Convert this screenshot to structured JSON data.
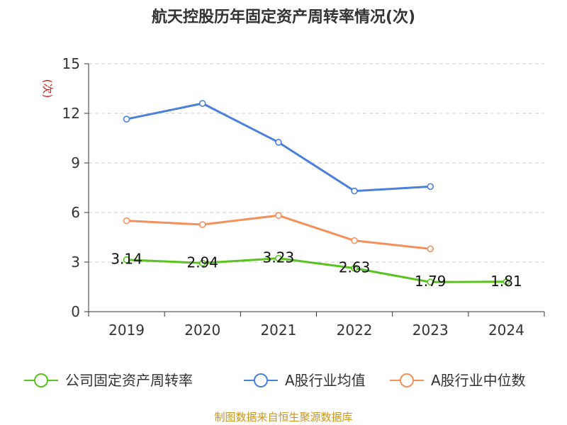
{
  "title": "航天控股历年固定资产周转率情况(次)",
  "source": "制图数据来自恒生聚源数据库",
  "chart_data": {
    "type": "line",
    "title": "航天控股历年固定资产周转率情况(次)",
    "ylabel": "(次)",
    "xlabel": "",
    "categories": [
      "2019",
      "2020",
      "2021",
      "2022",
      "2023",
      "2024"
    ],
    "ylim": [
      0,
      15
    ],
    "yticks": [
      0,
      3,
      6,
      9,
      12,
      15
    ],
    "grid": true,
    "legend_position": "bottom",
    "series": [
      {
        "name": "公司固定资产周转率",
        "color": "#5ac21e",
        "values": [
          3.14,
          2.94,
          3.23,
          2.63,
          1.79,
          1.81
        ],
        "show_labels": true
      },
      {
        "name": "A股行业均值",
        "color": "#4a7fdc",
        "values": [
          11.65,
          12.6,
          10.25,
          7.3,
          7.57,
          null
        ],
        "show_labels": false
      },
      {
        "name": "A股行业中位数",
        "color": "#f5905a",
        "values": [
          5.5,
          5.27,
          5.82,
          4.3,
          3.8,
          null
        ],
        "show_labels": false
      }
    ]
  }
}
